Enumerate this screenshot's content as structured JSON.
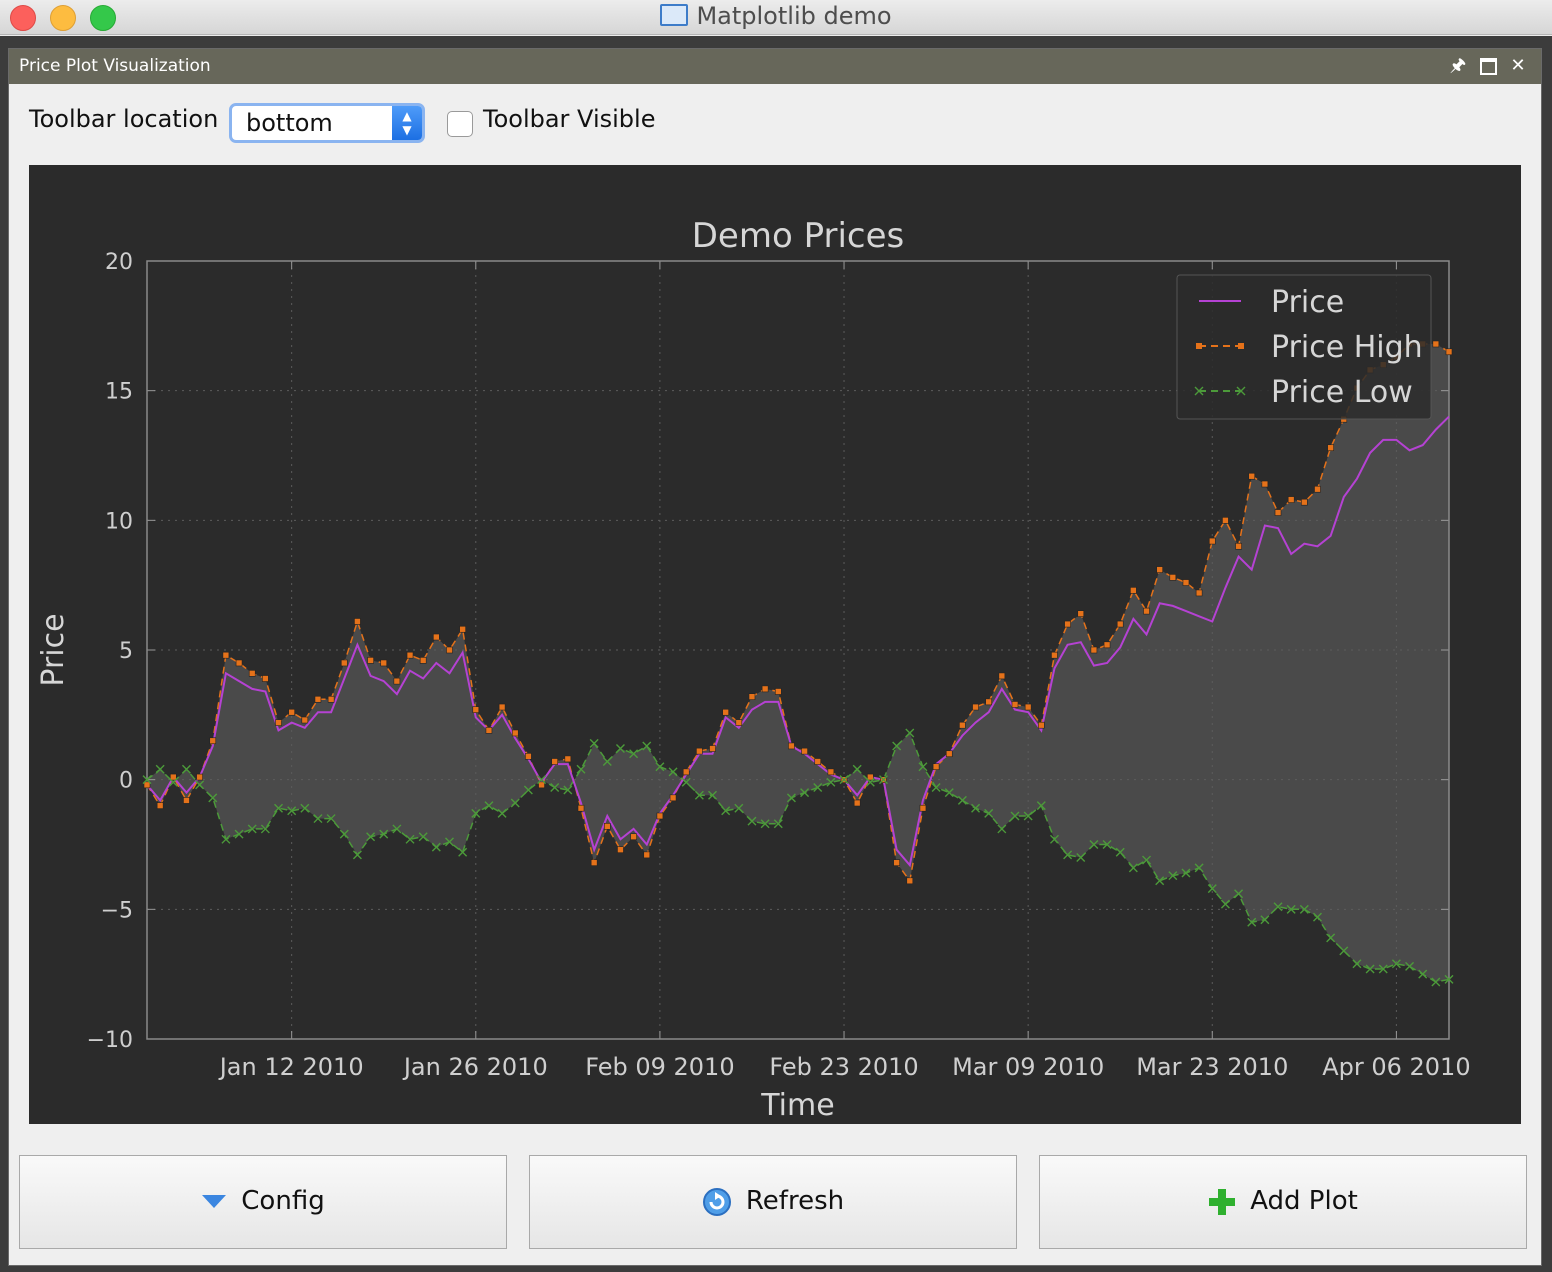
{
  "window": {
    "title": "Matplotlib demo"
  },
  "dock": {
    "title": "Price Plot Visualization"
  },
  "controls": {
    "toolbar_location_label": "Toolbar location",
    "toolbar_location_value": "bottom",
    "toolbar_visible_label": "Toolbar Visible",
    "toolbar_visible_checked": false
  },
  "buttons": {
    "config": "Config",
    "refresh": "Refresh",
    "add_plot": "Add Plot"
  },
  "colors": {
    "price": "#b542d3",
    "price_high": "#e5721a",
    "price_low": "#4c9a3a",
    "fill": "#4a4a4a",
    "background": "#2b2b2b"
  },
  "chart_data": {
    "type": "line",
    "title": "Demo Prices",
    "xlabel": "Time",
    "ylabel": "Price",
    "ylim": [
      -10,
      20
    ],
    "yticks": [
      -10,
      -5,
      0,
      5,
      10,
      15,
      20
    ],
    "ytick_labels": [
      "−10",
      "−5",
      "0",
      "5",
      "10",
      "15",
      "20"
    ],
    "xlim": [
      "2010-01-01",
      "2010-04-10"
    ],
    "xticks": [
      "2010-01-12",
      "2010-01-26",
      "2010-02-09",
      "2010-02-23",
      "2010-03-09",
      "2010-03-23",
      "2010-04-06"
    ],
    "xtick_labels": [
      "Jan 12 2010",
      "Jan 26 2010",
      "Feb 09 2010",
      "Feb 23 2010",
      "Mar 09 2010",
      "Mar 23 2010",
      "Apr 06 2010"
    ],
    "grid": true,
    "legend_position": "top-right",
    "fill_between_high_low": true,
    "x": [
      "2010-01-01",
      "2010-01-02",
      "2010-01-03",
      "2010-01-04",
      "2010-01-05",
      "2010-01-06",
      "2010-01-07",
      "2010-01-08",
      "2010-01-09",
      "2010-01-10",
      "2010-01-11",
      "2010-01-12",
      "2010-01-13",
      "2010-01-14",
      "2010-01-15",
      "2010-01-16",
      "2010-01-17",
      "2010-01-18",
      "2010-01-19",
      "2010-01-20",
      "2010-01-21",
      "2010-01-22",
      "2010-01-23",
      "2010-01-24",
      "2010-01-25",
      "2010-01-26",
      "2010-01-27",
      "2010-01-28",
      "2010-01-29",
      "2010-01-30",
      "2010-01-31",
      "2010-02-01",
      "2010-02-02",
      "2010-02-03",
      "2010-02-04",
      "2010-02-05",
      "2010-02-06",
      "2010-02-07",
      "2010-02-08",
      "2010-02-09",
      "2010-02-10",
      "2010-02-11",
      "2010-02-12",
      "2010-02-13",
      "2010-02-14",
      "2010-02-15",
      "2010-02-16",
      "2010-02-17",
      "2010-02-18",
      "2010-02-19",
      "2010-02-20",
      "2010-02-21",
      "2010-02-22",
      "2010-02-23",
      "2010-02-24",
      "2010-02-25",
      "2010-02-26",
      "2010-02-27",
      "2010-02-28",
      "2010-03-01",
      "2010-03-02",
      "2010-03-03",
      "2010-03-04",
      "2010-03-05",
      "2010-03-06",
      "2010-03-07",
      "2010-03-08",
      "2010-03-09",
      "2010-03-10",
      "2010-03-11",
      "2010-03-12",
      "2010-03-13",
      "2010-03-14",
      "2010-03-15",
      "2010-03-16",
      "2010-03-17",
      "2010-03-18",
      "2010-03-19",
      "2010-03-20",
      "2010-03-21",
      "2010-03-22",
      "2010-03-23",
      "2010-03-24",
      "2010-03-25",
      "2010-03-26",
      "2010-03-27",
      "2010-03-28",
      "2010-03-29",
      "2010-03-30",
      "2010-03-31",
      "2010-04-01",
      "2010-04-02",
      "2010-04-03",
      "2010-04-04",
      "2010-04-05",
      "2010-04-06",
      "2010-04-07",
      "2010-04-08",
      "2010-04-09",
      "2010-04-10"
    ],
    "series": [
      {
        "name": "Price",
        "style": "solid",
        "values": [
          -0.2,
          -0.8,
          0.1,
          -0.5,
          0.1,
          1.3,
          4.1,
          3.8,
          3.5,
          3.4,
          1.9,
          2.2,
          2.0,
          2.6,
          2.6,
          3.9,
          5.2,
          4.0,
          3.8,
          3.3,
          4.2,
          3.9,
          4.5,
          4.1,
          4.9,
          2.4,
          1.9,
          2.5,
          1.6,
          0.8,
          -0.1,
          0.6,
          0.6,
          -0.9,
          -2.7,
          -1.4,
          -2.3,
          -1.9,
          -2.5,
          -1.3,
          -0.6,
          0.2,
          1.0,
          1.0,
          2.4,
          2.0,
          2.7,
          3.0,
          3.0,
          1.3,
          1.0,
          0.6,
          0.2,
          0.0,
          -0.6,
          0.1,
          0.0,
          -2.7,
          -3.3,
          -0.8,
          0.6,
          1.0,
          1.7,
          2.2,
          2.6,
          3.5,
          2.7,
          2.6,
          1.9,
          4.3,
          5.2,
          5.3,
          4.4,
          4.5,
          5.1,
          6.2,
          5.6,
          6.8,
          6.7,
          6.5,
          6.3,
          6.1,
          7.4,
          8.6,
          8.1,
          9.8,
          9.7,
          8.7,
          9.1,
          9.0,
          9.4,
          10.9,
          11.6,
          12.6,
          13.1,
          13.1,
          12.7,
          12.9,
          13.5,
          14.0
        ]
      },
      {
        "name": "Price High",
        "style": "dashed",
        "marker": "square",
        "values": [
          -0.2,
          -1.0,
          0.1,
          -0.8,
          0.1,
          1.5,
          4.8,
          4.5,
          4.1,
          3.9,
          2.2,
          2.6,
          2.3,
          3.1,
          3.1,
          4.5,
          6.1,
          4.6,
          4.5,
          3.8,
          4.8,
          4.6,
          5.5,
          5.0,
          5.8,
          2.7,
          1.9,
          2.8,
          1.8,
          0.9,
          -0.2,
          0.7,
          0.8,
          -1.1,
          -3.2,
          -1.8,
          -2.7,
          -2.2,
          -2.9,
          -1.4,
          -0.7,
          0.3,
          1.1,
          1.2,
          2.6,
          2.2,
          3.2,
          3.5,
          3.4,
          1.3,
          1.1,
          0.7,
          0.3,
          0.0,
          -0.9,
          0.1,
          0.0,
          -3.2,
          -3.9,
          -1.1,
          0.5,
          1.0,
          2.1,
          2.8,
          3.0,
          4.0,
          2.9,
          2.8,
          2.1,
          4.8,
          6.0,
          6.4,
          5.0,
          5.2,
          6.0,
          7.3,
          6.5,
          8.1,
          7.8,
          7.6,
          7.2,
          9.2,
          10.0,
          9.0,
          11.7,
          11.4,
          10.3,
          10.8,
          10.7,
          11.2,
          12.8,
          13.9,
          15.1,
          15.8,
          16.0,
          16.3,
          16.8,
          16.8,
          16.8,
          16.5
        ]
      },
      {
        "name": "Price Low",
        "style": "dashed",
        "marker": "x",
        "values": [
          0.0,
          0.4,
          -0.1,
          0.4,
          -0.2,
          -0.7,
          -2.3,
          -2.1,
          -1.9,
          -1.9,
          -1.1,
          -1.2,
          -1.1,
          -1.5,
          -1.5,
          -2.1,
          -2.9,
          -2.2,
          -2.1,
          -1.9,
          -2.3,
          -2.2,
          -2.6,
          -2.4,
          -2.8,
          -1.3,
          -1.0,
          -1.3,
          -0.9,
          -0.4,
          0.0,
          -0.3,
          -0.4,
          0.4,
          1.4,
          0.7,
          1.2,
          1.0,
          1.3,
          0.5,
          0.3,
          -0.1,
          -0.6,
          -0.6,
          -1.2,
          -1.1,
          -1.6,
          -1.7,
          -1.7,
          -0.7,
          -0.5,
          -0.3,
          -0.1,
          0.0,
          0.4,
          -0.1,
          0.0,
          1.3,
          1.8,
          0.5,
          -0.3,
          -0.5,
          -0.8,
          -1.1,
          -1.3,
          -1.9,
          -1.4,
          -1.4,
          -1.0,
          -2.3,
          -2.9,
          -3.0,
          -2.5,
          -2.5,
          -2.8,
          -3.4,
          -3.1,
          -3.9,
          -3.7,
          -3.6,
          -3.4,
          -4.2,
          -4.8,
          -4.4,
          -5.5,
          -5.4,
          -4.9,
          -5.0,
          -5.0,
          -5.3,
          -6.1,
          -6.6,
          -7.1,
          -7.3,
          -7.3,
          -7.1,
          -7.2,
          -7.5,
          -7.8,
          -7.7
        ]
      }
    ]
  }
}
